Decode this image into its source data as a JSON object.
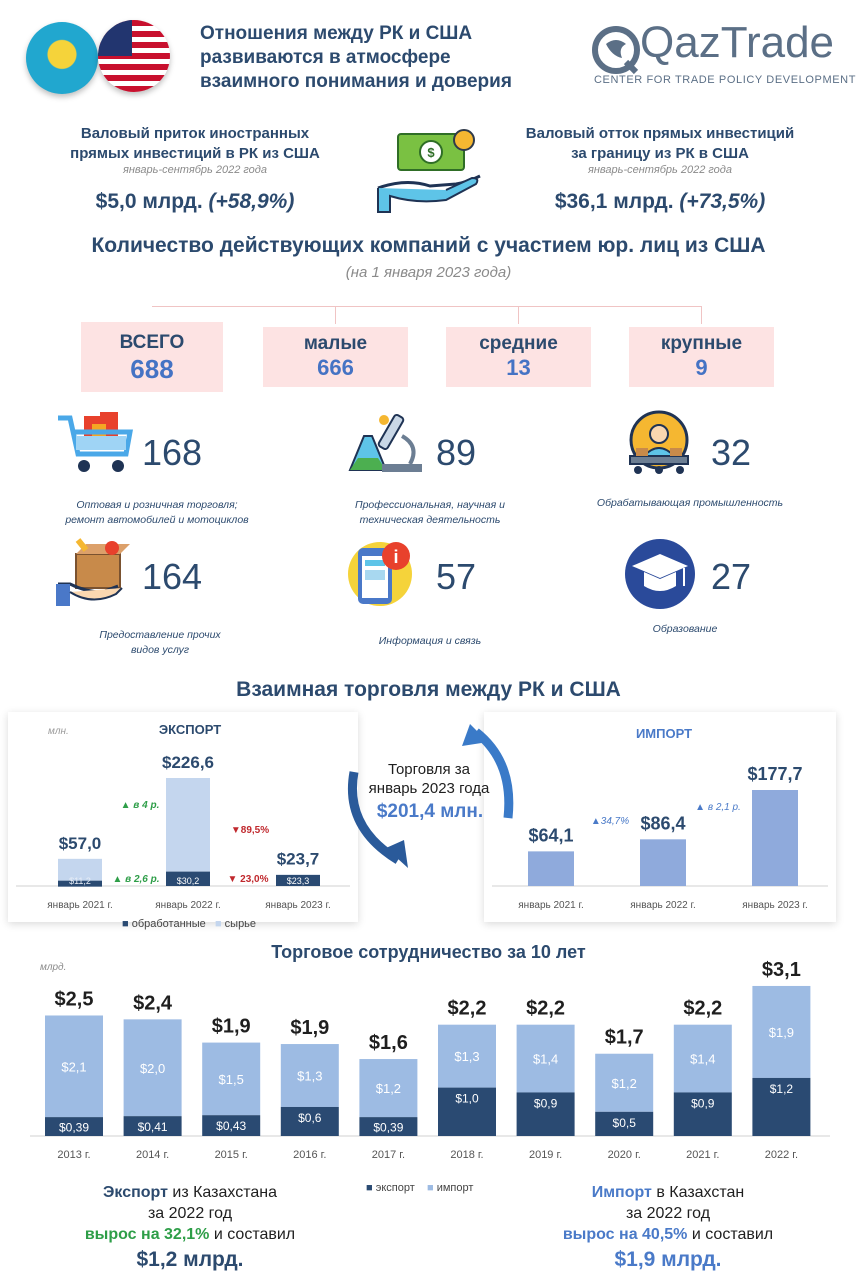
{
  "header": {
    "title_line1": "Отношения между РК и США",
    "title_line2": "развиваются в атмосфере",
    "title_line3": "взаимного понимания и доверия",
    "logo_text": "QazTrade",
    "logo_subtitle": "CENTER FOR TRADE POLICY DEVELOPMENT"
  },
  "fdi": {
    "inflow_title1": "Валовый приток иностранных",
    "inflow_title2": "прямых инвестиций в РК из США",
    "inflow_period": "январь-сентябрь 2022 года",
    "inflow_value": "$5,0 млрд.",
    "inflow_change": "(+58,9%)",
    "outflow_title1": "Валовый отток прямых инвестиций",
    "outflow_title2": "за границу из РК в США",
    "outflow_period": "январь-сентябрь 2022 года",
    "outflow_value": "$36,1 млрд.",
    "outflow_change": "(+73,5%)"
  },
  "companies": {
    "title": "Количество действующих компаний с участием юр. лиц из США",
    "subtitle": "(на 1 января 2023 года)",
    "totals": [
      {
        "label": "ВСЕГО",
        "value": "688"
      },
      {
        "label": "малые",
        "value": "666"
      },
      {
        "label": "средние",
        "value": "13"
      },
      {
        "label": "крупные",
        "value": "9"
      }
    ],
    "industries": [
      {
        "icon": "shopping-cart-icon",
        "value": "168",
        "label1": "Оптовая и розничная торговля;",
        "label2": "ремонт автомобилей и мотоциклов"
      },
      {
        "icon": "microscope-icon",
        "value": "89",
        "label1": "Профессиональная, научная и",
        "label2": "техническая деятельность"
      },
      {
        "icon": "factory-worker-icon",
        "value": "32",
        "label1": "Обрабатывающая промышленность",
        "label2": ""
      },
      {
        "icon": "service-box-icon",
        "value": "164",
        "label1": "Предоставление прочих",
        "label2": "видов услуг"
      },
      {
        "icon": "info-phone-icon",
        "value": "57",
        "label1": "Информация и связь",
        "label2": ""
      },
      {
        "icon": "graduation-cap-icon",
        "value": "27",
        "label1": "Образование",
        "label2": ""
      }
    ]
  },
  "trade": {
    "title": "Взаимная торговля между РК и США",
    "center_label1": "Торговля за",
    "center_label2": "январь 2023 года",
    "center_value": "$201,4 млн."
  },
  "chart_data": [
    {
      "type": "bar",
      "title": "ЭКСПОРТ",
      "unit_label": "млн.",
      "categories": [
        "январь 2021 г.",
        "январь 2022 г.",
        "январь 2023 г."
      ],
      "totals": [
        57.0,
        226.6,
        23.7
      ],
      "total_labels": [
        "$57,0",
        "$226,6",
        "$23,7"
      ],
      "series": [
        {
          "name": "обработанные",
          "values": [
            11.2,
            30.2,
            23.3
          ],
          "labels": [
            "$11,2",
            "$30,2",
            "$23,3"
          ]
        },
        {
          "name": "сырье",
          "values": [
            45.8,
            196.4,
            0.4
          ]
        }
      ],
      "annotations": [
        "▲ в 4 р.",
        "▲ в 2,6 р.",
        "▼89,5%",
        "▼ 23,0%"
      ],
      "legend": [
        "обработанные",
        "сырье"
      ],
      "colors": {
        "processed": "#2a4a72",
        "raw": "#c4d6ee"
      }
    },
    {
      "type": "bar",
      "title": "ИМПОРТ",
      "categories": [
        "январь 2021 г.",
        "январь 2022 г.",
        "январь 2023 г."
      ],
      "values": [
        64.1,
        86.4,
        177.7
      ],
      "value_labels": [
        "$64,1",
        "$86,4",
        "$177,7"
      ],
      "annotations": [
        "▲34,7%",
        "▲ в 2,1 р."
      ],
      "colors": {
        "bar": "#8faadc"
      }
    },
    {
      "type": "bar",
      "title": "Торговое сотрудничество за 10 лет",
      "unit_label": "млрд.",
      "categories": [
        "2013 г.",
        "2014 г.",
        "2015 г.",
        "2016 г.",
        "2017 г.",
        "2018 г.",
        "2019 г.",
        "2020 г.",
        "2021 г.",
        "2022 г."
      ],
      "totals": [
        2.5,
        2.4,
        1.9,
        1.9,
        1.6,
        2.2,
        2.2,
        1.7,
        2.2,
        3.1
      ],
      "total_labels": [
        "$2,5",
        "$2,4",
        "$1,9",
        "$1,9",
        "$1,6",
        "$2,2",
        "$2,2",
        "$1,7",
        "$2,2",
        "$3,1"
      ],
      "series": [
        {
          "name": "экспорт",
          "values": [
            0.39,
            0.41,
            0.43,
            0.6,
            0.39,
            1.0,
            0.9,
            0.5,
            0.9,
            1.2
          ],
          "labels": [
            "$0,39",
            "$0,41",
            "$0,43",
            "$0,6",
            "$0,39",
            "$1,0",
            "$0,9",
            "$0,5",
            "$0,9",
            "$1,2"
          ]
        },
        {
          "name": "импорт",
          "values": [
            2.1,
            2.0,
            1.5,
            1.3,
            1.2,
            1.3,
            1.4,
            1.2,
            1.4,
            1.9
          ],
          "labels": [
            "$2,1",
            "$2,0",
            "$1,5",
            "$1,3",
            "$1,2",
            "$1,3",
            "$1,4",
            "$1,2",
            "$1,4",
            "$1,9"
          ]
        }
      ],
      "legend": [
        "экспорт",
        "импорт"
      ],
      "colors": {
        "export": "#2a4a72",
        "import": "#9dbbe3"
      }
    }
  ],
  "footer": {
    "export_title_a": "Экспорт",
    "export_title_b": " из Казахстана",
    "export_year": "за 2022 год",
    "export_growth": "вырос на 32,1%",
    "export_growth_b": " и составил",
    "export_value": "$1,2 млрд.",
    "import_title_a": "Импорт",
    "import_title_b": " в Казахстан",
    "import_year": "за 2022 год",
    "import_growth": "вырос на 40,5%",
    "import_growth_b": " и составил",
    "import_value": "$1,9 млрд."
  }
}
